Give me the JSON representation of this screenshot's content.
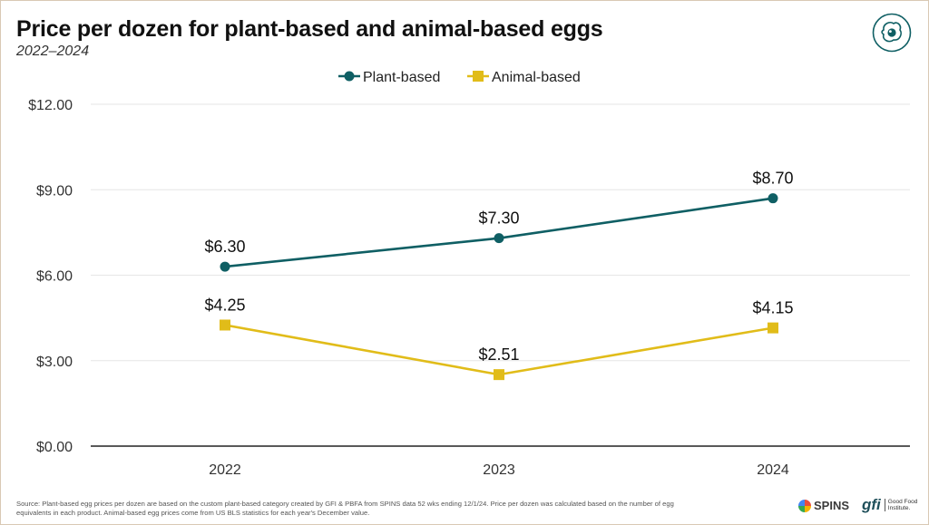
{
  "header": {
    "title": "Price per dozen for plant-based and animal-based eggs",
    "subtitle": "2022–2024"
  },
  "chart_data": {
    "type": "line",
    "title": "Price per dozen for plant-based and animal-based eggs",
    "subtitle": "2022–2024",
    "categories": [
      "2022",
      "2023",
      "2024"
    ],
    "series": [
      {
        "name": "Plant-based",
        "values": [
          6.3,
          7.3,
          8.7
        ],
        "labels": [
          "$6.30",
          "$7.30",
          "$8.70"
        ],
        "color": "#0f5f64",
        "marker": "circle"
      },
      {
        "name": "Animal-based",
        "values": [
          4.25,
          2.51,
          4.15
        ],
        "labels": [
          "$4.25",
          "$2.51",
          "$4.15"
        ],
        "color": "#e1bc19",
        "marker": "square"
      }
    ],
    "y_ticks": [
      0,
      3,
      6,
      9,
      12
    ],
    "y_tick_labels": [
      "$0.00",
      "$3.00",
      "$6.00",
      "$9.00",
      "$12.00"
    ],
    "ylim": [
      0,
      12
    ],
    "xlabel": "",
    "ylabel": "",
    "grid": true,
    "legend": "top-center"
  },
  "footer": {
    "source_line1": "Source: Plant-based egg prices per dozen are based on the custom plant-based category created by GFI & PBFA from SPINS data 52 wks ending 12/1/24. Price per dozen was calculated based on the number of egg",
    "source_line2": "equivalents in each product. Animal-based egg prices come from US BLS statistics for each year's December value.",
    "spins_label": "SPINS",
    "gfi_mark": "gfi",
    "gfi_line1": "Good Food",
    "gfi_line2": "Institute."
  },
  "colors": {
    "plant": "#0f5f64",
    "animal": "#e1bc19",
    "grid": "#e6e6e6",
    "axis": "#222222"
  },
  "icons": {
    "corner_logo": "egg-icon",
    "spins_logo": "spins-logo-icon"
  }
}
